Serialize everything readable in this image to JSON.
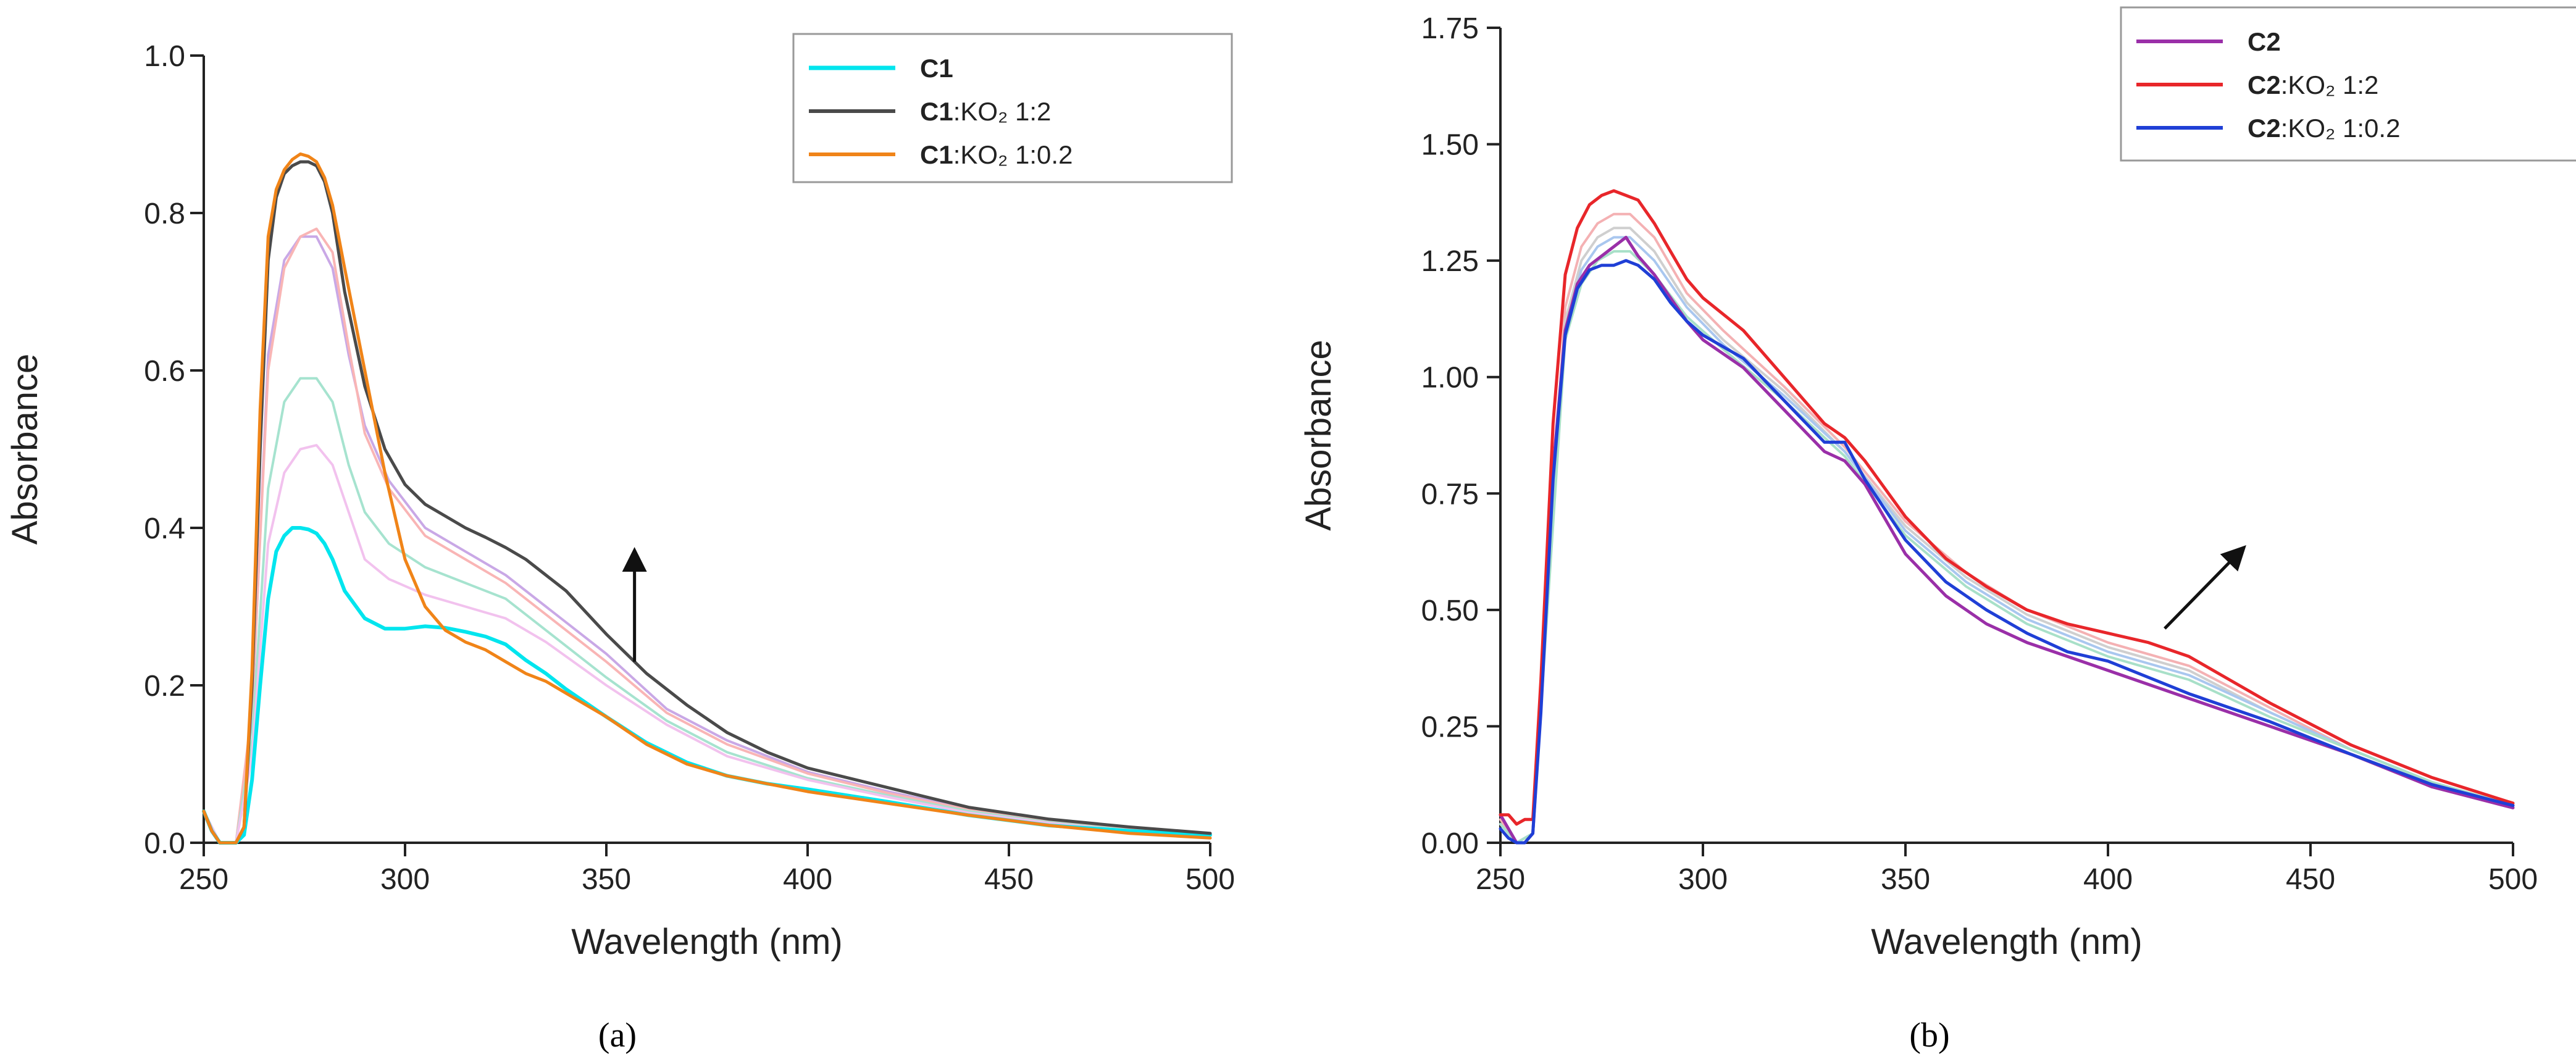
{
  "figure": {
    "captions": [
      "(a)",
      "(b)"
    ]
  },
  "chart_data": [
    {
      "type": "line",
      "panel": "(a)",
      "title": "",
      "xlabel": "Wavelength (nm)",
      "ylabel": "Absorbance",
      "xlim": [
        250,
        500
      ],
      "ylim": [
        0,
        1.0
      ],
      "xticks": [
        250,
        300,
        350,
        400,
        450,
        500
      ],
      "xtick_labels": [
        "250",
        "300",
        "350",
        "400",
        "450",
        "500"
      ],
      "yticks": [
        0,
        0.2,
        0.4,
        0.6,
        0.8,
        1.0
      ],
      "ytick_labels": [
        "0.0",
        "0.2",
        "0.4",
        "0.6",
        "0.8",
        "1.0"
      ],
      "grid": false,
      "legend_position": "top-right",
      "annotation": {
        "type": "arrow",
        "direction": "up",
        "from": [
          357,
          0.23
        ],
        "to": [
          357,
          0.36
        ]
      },
      "series": [
        {
          "name": "C1",
          "name_bold": "C1",
          "name_rest": "",
          "color": "#00e5ee",
          "width": 6,
          "legend": true,
          "x": [
            250,
            252,
            254,
            256,
            258,
            260,
            262,
            264,
            266,
            268,
            270,
            272,
            274,
            276,
            278,
            280,
            282,
            285,
            290,
            295,
            300,
            305,
            310,
            315,
            320,
            325,
            330,
            335,
            340,
            350,
            360,
            370,
            380,
            390,
            400,
            420,
            440,
            460,
            480,
            500
          ],
          "y": [
            0.04,
            0.015,
            0.0,
            0.0,
            0.0,
            0.01,
            0.08,
            0.2,
            0.31,
            0.37,
            0.39,
            0.4,
            0.4,
            0.398,
            0.393,
            0.38,
            0.36,
            0.32,
            0.285,
            0.272,
            0.272,
            0.275,
            0.273,
            0.268,
            0.262,
            0.252,
            0.232,
            0.215,
            0.195,
            0.16,
            0.127,
            0.102,
            0.085,
            0.075,
            0.068,
            0.052,
            0.035,
            0.022,
            0.015,
            0.01
          ]
        },
        {
          "name": "C1:KO2 1:2",
          "name_bold": "C1",
          "name_rest": ":KO₂ 1:2",
          "color": "#4a4a4a",
          "width": 5,
          "legend": true,
          "x": [
            250,
            252,
            254,
            256,
            258,
            260,
            262,
            264,
            266,
            268,
            270,
            272,
            274,
            276,
            278,
            280,
            282,
            285,
            290,
            295,
            300,
            305,
            310,
            315,
            320,
            325,
            330,
            335,
            340,
            350,
            360,
            370,
            380,
            390,
            400,
            420,
            440,
            460,
            480,
            500
          ],
          "y": [
            0.04,
            0.015,
            0.0,
            0.0,
            0.0,
            0.02,
            0.2,
            0.5,
            0.74,
            0.82,
            0.85,
            0.86,
            0.865,
            0.865,
            0.86,
            0.84,
            0.8,
            0.7,
            0.58,
            0.5,
            0.455,
            0.43,
            0.415,
            0.4,
            0.388,
            0.375,
            0.36,
            0.34,
            0.32,
            0.265,
            0.215,
            0.175,
            0.14,
            0.115,
            0.095,
            0.07,
            0.045,
            0.03,
            0.02,
            0.012
          ]
        },
        {
          "name": "C1:KO2 1:0.2",
          "name_bold": "C1",
          "name_rest": ":KO₂ 1:0.2",
          "color": "#f08418",
          "width": 5,
          "legend": true,
          "x": [
            250,
            252,
            254,
            256,
            258,
            260,
            262,
            264,
            266,
            268,
            270,
            272,
            274,
            276,
            278,
            280,
            282,
            285,
            290,
            295,
            300,
            305,
            310,
            315,
            320,
            325,
            330,
            335,
            340,
            350,
            360,
            370,
            380,
            390,
            400,
            420,
            440,
            460,
            480,
            500
          ],
          "y": [
            0.04,
            0.015,
            0.0,
            0.0,
            0.0,
            0.02,
            0.22,
            0.55,
            0.77,
            0.83,
            0.855,
            0.868,
            0.875,
            0.872,
            0.865,
            0.845,
            0.81,
            0.73,
            0.6,
            0.47,
            0.36,
            0.3,
            0.27,
            0.255,
            0.245,
            0.23,
            0.215,
            0.205,
            0.19,
            0.16,
            0.125,
            0.1,
            0.085,
            0.075,
            0.065,
            0.05,
            0.035,
            0.022,
            0.012,
            0.006
          ]
        },
        {
          "name": "intermediate-1",
          "color": "#c9a8e6",
          "width": 4,
          "legend": false,
          "x": [
            250,
            254,
            258,
            262,
            266,
            270,
            274,
            278,
            282,
            286,
            290,
            296,
            305,
            315,
            325,
            335,
            350,
            365,
            380,
            400,
            420,
            440,
            460,
            480,
            500
          ],
          "y": [
            0.04,
            0.0,
            0.0,
            0.16,
            0.62,
            0.74,
            0.77,
            0.77,
            0.73,
            0.62,
            0.53,
            0.46,
            0.4,
            0.37,
            0.34,
            0.3,
            0.24,
            0.17,
            0.13,
            0.09,
            0.065,
            0.043,
            0.028,
            0.018,
            0.011
          ]
        },
        {
          "name": "intermediate-2",
          "color": "#f9b5b5",
          "width": 4,
          "legend": false,
          "x": [
            250,
            254,
            258,
            262,
            266,
            270,
            274,
            278,
            282,
            286,
            290,
            296,
            305,
            315,
            325,
            335,
            350,
            365,
            380,
            400,
            420,
            440,
            460,
            480,
            500
          ],
          "y": [
            0.04,
            0.0,
            0.0,
            0.17,
            0.6,
            0.73,
            0.77,
            0.78,
            0.75,
            0.63,
            0.52,
            0.45,
            0.39,
            0.36,
            0.33,
            0.29,
            0.23,
            0.165,
            0.125,
            0.088,
            0.063,
            0.042,
            0.027,
            0.017,
            0.01
          ]
        },
        {
          "name": "intermediate-3",
          "color": "#a6e3cf",
          "width": 4,
          "legend": false,
          "x": [
            250,
            254,
            258,
            262,
            266,
            270,
            274,
            278,
            282,
            286,
            290,
            296,
            305,
            315,
            325,
            335,
            350,
            365,
            380,
            400,
            420,
            440,
            460,
            480,
            500
          ],
          "y": [
            0.04,
            0.0,
            0.0,
            0.13,
            0.45,
            0.56,
            0.59,
            0.59,
            0.56,
            0.48,
            0.42,
            0.38,
            0.35,
            0.33,
            0.31,
            0.27,
            0.21,
            0.155,
            0.115,
            0.082,
            0.06,
            0.04,
            0.026,
            0.016,
            0.01
          ]
        },
        {
          "name": "intermediate-4",
          "color": "#f2c2ee",
          "width": 4,
          "legend": false,
          "x": [
            250,
            254,
            258,
            262,
            266,
            270,
            274,
            278,
            282,
            286,
            290,
            296,
            305,
            315,
            325,
            335,
            350,
            365,
            380,
            400,
            420,
            440,
            460,
            480,
            500
          ],
          "y": [
            0.04,
            0.0,
            0.0,
            0.11,
            0.38,
            0.47,
            0.5,
            0.505,
            0.48,
            0.42,
            0.36,
            0.335,
            0.315,
            0.3,
            0.285,
            0.255,
            0.2,
            0.15,
            0.11,
            0.08,
            0.058,
            0.038,
            0.025,
            0.015,
            0.009
          ]
        }
      ]
    },
    {
      "type": "line",
      "panel": "(b)",
      "title": "",
      "xlabel": "Wavelength (nm)",
      "ylabel": "Absorbance",
      "xlim": [
        250,
        500
      ],
      "ylim": [
        0,
        1.75
      ],
      "xticks": [
        250,
        300,
        350,
        400,
        450,
        500
      ],
      "xtick_labels": [
        "250",
        "300",
        "350",
        "400",
        "450",
        "500"
      ],
      "yticks": [
        0,
        0.25,
        0.5,
        0.75,
        1.0,
        1.25,
        1.5,
        1.75
      ],
      "ytick_labels": [
        "0.00",
        "0.25",
        "0.50",
        "0.75",
        "1.00",
        "1.25",
        "1.50",
        "1.75"
      ],
      "grid": false,
      "legend_position": "top-right",
      "annotation": {
        "type": "arrow",
        "direction": "up-right",
        "from": [
          414,
          0.46
        ],
        "to": [
          432,
          0.62
        ]
      },
      "series": [
        {
          "name": "C2",
          "name_bold": "C2",
          "name_rest": "",
          "color": "#9a2fa8",
          "width": 5,
          "legend": true,
          "x": [
            250,
            252,
            254,
            256,
            258,
            260,
            263,
            266,
            269,
            272,
            275,
            278,
            281,
            284,
            288,
            292,
            296,
            300,
            310,
            320,
            330,
            335,
            340,
            350,
            360,
            370,
            380,
            390,
            400,
            420,
            440,
            460,
            480,
            500
          ],
          "y": [
            0.06,
            0.03,
            0.0,
            0.0,
            0.02,
            0.3,
            0.8,
            1.1,
            1.2,
            1.24,
            1.26,
            1.28,
            1.3,
            1.26,
            1.22,
            1.17,
            1.12,
            1.08,
            1.02,
            0.93,
            0.84,
            0.82,
            0.77,
            0.62,
            0.53,
            0.47,
            0.43,
            0.4,
            0.37,
            0.31,
            0.25,
            0.19,
            0.12,
            0.075
          ]
        },
        {
          "name": "C2:KO2 1:2",
          "name_bold": "C2",
          "name_rest": ":KO₂ 1:2",
          "color": "#e8262a",
          "width": 5,
          "legend": true,
          "x": [
            250,
            252,
            254,
            256,
            258,
            260,
            263,
            266,
            269,
            272,
            275,
            278,
            281,
            284,
            288,
            292,
            296,
            300,
            310,
            320,
            330,
            335,
            340,
            350,
            360,
            370,
            380,
            390,
            400,
            410,
            420,
            430,
            440,
            460,
            480,
            500
          ],
          "y": [
            0.06,
            0.06,
            0.04,
            0.05,
            0.05,
            0.35,
            0.9,
            1.22,
            1.32,
            1.37,
            1.39,
            1.4,
            1.39,
            1.38,
            1.33,
            1.27,
            1.21,
            1.17,
            1.1,
            1.0,
            0.9,
            0.87,
            0.82,
            0.7,
            0.61,
            0.55,
            0.5,
            0.47,
            0.45,
            0.43,
            0.4,
            0.35,
            0.3,
            0.21,
            0.14,
            0.085
          ]
        },
        {
          "name": "C2:KO2 1:0.2",
          "name_bold": "C2",
          "name_rest": ":KO₂ 1:0.2",
          "color": "#1f3fd6",
          "width": 5,
          "legend": true,
          "x": [
            250,
            252,
            254,
            256,
            258,
            260,
            263,
            266,
            269,
            272,
            275,
            278,
            281,
            284,
            288,
            292,
            296,
            300,
            310,
            320,
            330,
            335,
            340,
            350,
            360,
            370,
            380,
            390,
            400,
            420,
            440,
            460,
            480,
            500
          ],
          "y": [
            0.03,
            0.01,
            0.0,
            0.0,
            0.02,
            0.28,
            0.78,
            1.09,
            1.19,
            1.23,
            1.24,
            1.24,
            1.25,
            1.24,
            1.21,
            1.16,
            1.12,
            1.09,
            1.04,
            0.95,
            0.86,
            0.86,
            0.78,
            0.65,
            0.56,
            0.5,
            0.45,
            0.41,
            0.39,
            0.32,
            0.26,
            0.19,
            0.125,
            0.08
          ]
        },
        {
          "name": "intermediate-1",
          "color": "#f4b1b3",
          "width": 4,
          "legend": false,
          "x": [
            250,
            254,
            258,
            262,
            266,
            270,
            274,
            278,
            282,
            288,
            296,
            305,
            320,
            335,
            350,
            365,
            380,
            400,
            420,
            440,
            460,
            480,
            500
          ],
          "y": [
            0.05,
            0.0,
            0.02,
            0.6,
            1.15,
            1.28,
            1.33,
            1.35,
            1.35,
            1.3,
            1.18,
            1.1,
            0.98,
            0.85,
            0.69,
            0.58,
            0.5,
            0.43,
            0.38,
            0.29,
            0.2,
            0.13,
            0.08
          ]
        },
        {
          "name": "intermediate-2",
          "color": "#cfcfcf",
          "width": 4,
          "legend": false,
          "x": [
            250,
            254,
            258,
            262,
            266,
            270,
            274,
            278,
            282,
            288,
            296,
            305,
            320,
            335,
            350,
            365,
            380,
            400,
            420,
            440,
            460,
            480,
            500
          ],
          "y": [
            0.04,
            0.0,
            0.02,
            0.58,
            1.12,
            1.25,
            1.3,
            1.32,
            1.32,
            1.27,
            1.16,
            1.08,
            0.97,
            0.84,
            0.68,
            0.57,
            0.49,
            0.42,
            0.37,
            0.28,
            0.2,
            0.13,
            0.08
          ]
        },
        {
          "name": "intermediate-3",
          "color": "#a9c7ef",
          "width": 4,
          "legend": false,
          "x": [
            250,
            254,
            258,
            262,
            266,
            270,
            274,
            278,
            282,
            288,
            296,
            305,
            320,
            335,
            350,
            365,
            380,
            400,
            420,
            440,
            460,
            480,
            500
          ],
          "y": [
            0.04,
            0.0,
            0.02,
            0.57,
            1.1,
            1.23,
            1.28,
            1.3,
            1.3,
            1.25,
            1.15,
            1.07,
            0.96,
            0.84,
            0.67,
            0.56,
            0.48,
            0.41,
            0.36,
            0.28,
            0.2,
            0.13,
            0.08
          ]
        },
        {
          "name": "intermediate-4",
          "color": "#a8e0c8",
          "width": 4,
          "legend": false,
          "x": [
            250,
            254,
            258,
            262,
            266,
            270,
            274,
            278,
            282,
            288,
            296,
            305,
            320,
            335,
            350,
            365,
            380,
            400,
            420,
            440,
            460,
            480,
            500
          ],
          "y": [
            0.04,
            0.0,
            0.02,
            0.55,
            1.08,
            1.2,
            1.25,
            1.27,
            1.27,
            1.22,
            1.13,
            1.06,
            0.95,
            0.83,
            0.66,
            0.55,
            0.47,
            0.4,
            0.35,
            0.27,
            0.2,
            0.13,
            0.08
          ]
        }
      ]
    }
  ]
}
